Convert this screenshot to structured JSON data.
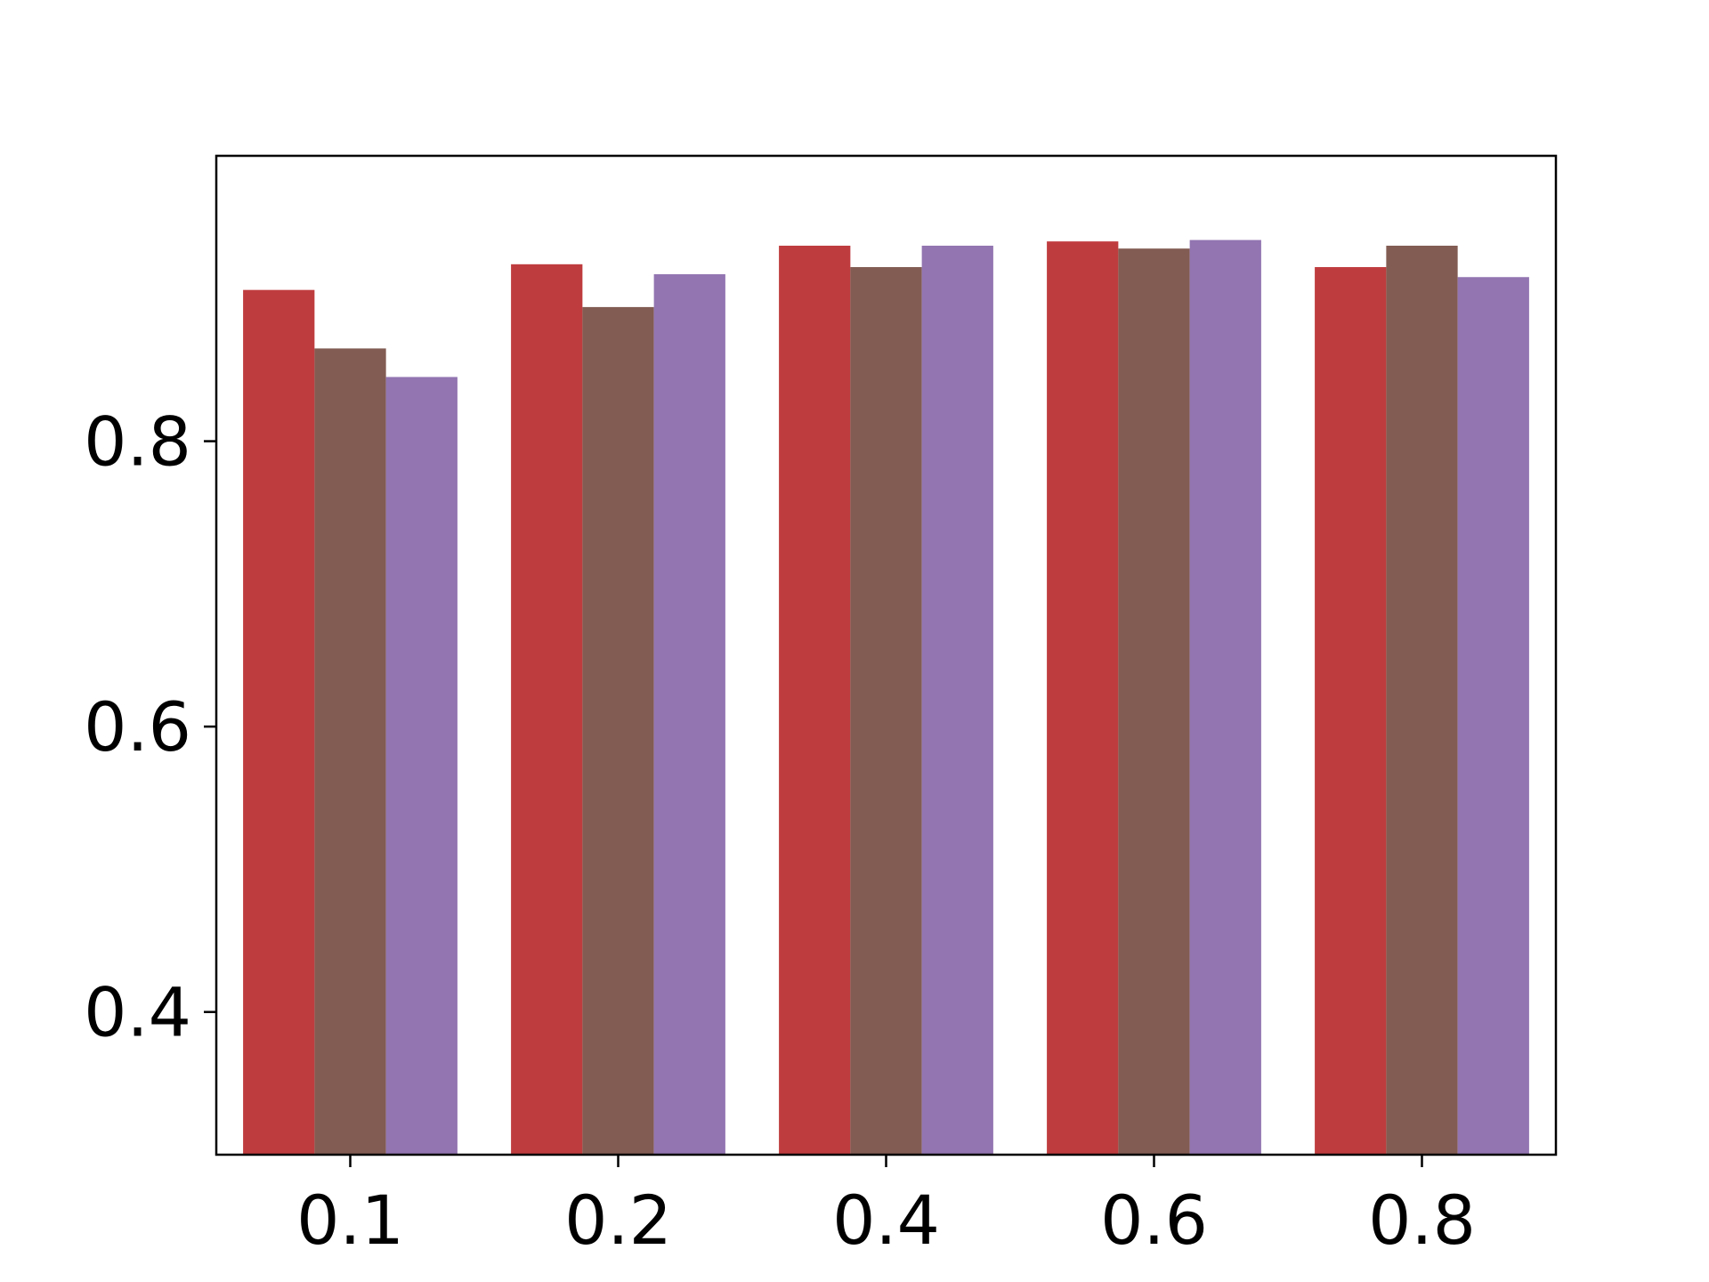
{
  "chart_data": {
    "type": "bar",
    "categories": [
      "0.1",
      "0.2",
      "0.4",
      "0.6",
      "0.8"
    ],
    "series": [
      {
        "values": [
          0.906,
          0.924,
          0.937,
          0.94,
          0.922
        ],
        "color": "#bf3c3e"
      },
      {
        "values": [
          0.865,
          0.894,
          0.922,
          0.935,
          0.937
        ],
        "color": "#825c52"
      },
      {
        "values": [
          0.845,
          0.917,
          0.937,
          0.941,
          0.915
        ],
        "color": "#9275b1"
      }
    ],
    "yticks": [
      "0.4",
      "0.6",
      "0.8"
    ],
    "ylim": [
      0.3,
      1.0
    ],
    "grid": false,
    "legend": "none"
  }
}
